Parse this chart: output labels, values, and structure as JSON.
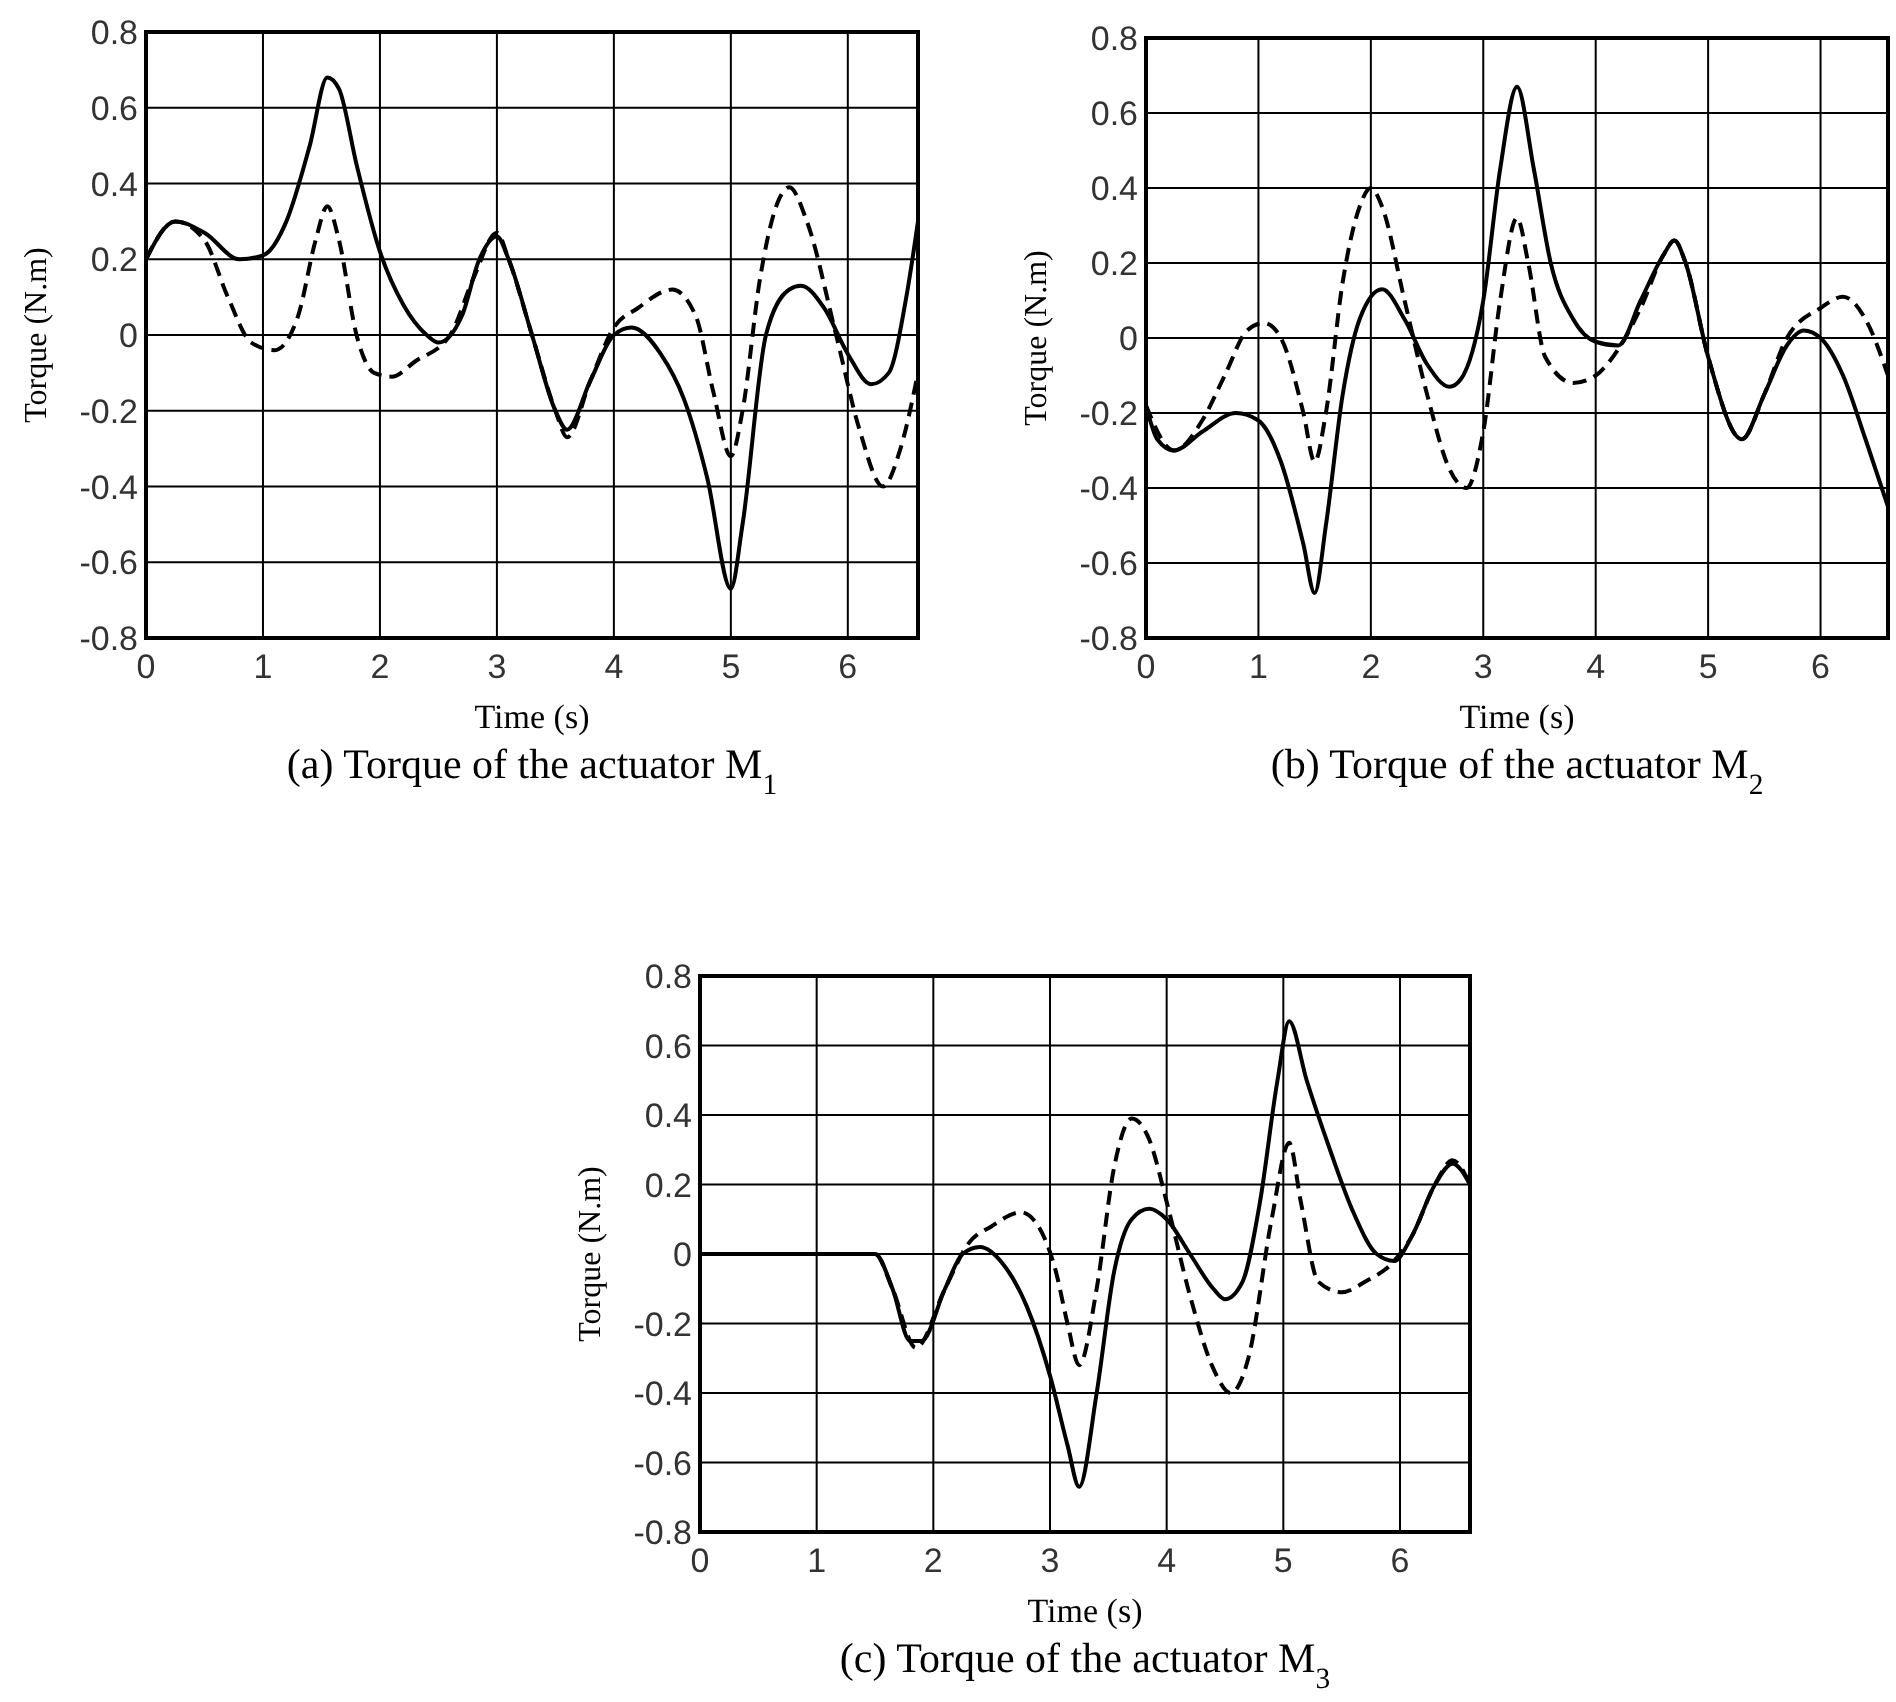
{
  "chart_data": [
    {
      "type": "line",
      "title": "(a) Torque of the actuator M$_{1}$",
      "xlabel": "Time (s)",
      "ylabel": "Torque (N.m)",
      "xlim": [
        0,
        6.6
      ],
      "ylim": [
        -0.8,
        0.8
      ],
      "xticks": [
        0,
        1,
        2,
        3,
        4,
        5,
        6
      ],
      "yticks": [
        -0.8,
        -0.6,
        -0.4,
        -0.2,
        0,
        0.2,
        0.4,
        0.6,
        0.8
      ],
      "grid": true,
      "series": [
        {
          "color": "#000000",
          "line_style": "solid",
          "x": [
            0,
            0.25,
            0.5,
            0.8,
            1.0,
            1.2,
            1.4,
            1.55,
            1.65,
            1.8,
            2.0,
            2.2,
            2.4,
            2.5,
            2.7,
            2.85,
            3.0,
            3.1,
            3.3,
            3.5,
            3.6,
            3.8,
            4.0,
            4.15,
            4.4,
            4.6,
            4.8,
            5.0,
            5.1,
            5.3,
            5.5,
            5.6,
            5.8,
            6.0,
            6.2,
            6.35,
            6.5,
            6.6
          ],
          "values": [
            0.2,
            0.3,
            0.27,
            0.2,
            0.21,
            0.3,
            0.5,
            0.68,
            0.65,
            0.45,
            0.22,
            0.08,
            0.0,
            -0.02,
            0.05,
            0.2,
            0.26,
            0.2,
            0.0,
            -0.2,
            -0.25,
            -0.12,
            0.0,
            0.02,
            -0.05,
            -0.17,
            -0.38,
            -0.67,
            -0.5,
            0.0,
            0.12,
            0.13,
            0.07,
            -0.05,
            -0.13,
            -0.1,
            0.1,
            0.3
          ]
        },
        {
          "color": "#000000",
          "line_style": "dashed",
          "x": [
            0,
            0.25,
            0.5,
            0.7,
            0.9,
            1.1,
            1.3,
            1.45,
            1.55,
            1.65,
            1.8,
            1.95,
            2.1,
            2.3,
            2.6,
            2.8,
            3.0,
            3.1,
            3.3,
            3.5,
            3.6,
            3.8,
            4.0,
            4.2,
            4.5,
            4.7,
            4.85,
            5.0,
            5.1,
            5.25,
            5.4,
            5.5,
            5.65,
            5.9,
            6.1,
            6.3,
            6.45,
            6.6
          ],
          "values": [
            0.2,
            0.3,
            0.25,
            0.1,
            -0.02,
            -0.04,
            0.05,
            0.25,
            0.34,
            0.25,
            0.0,
            -0.1,
            -0.11,
            -0.07,
            0.0,
            0.15,
            0.27,
            0.2,
            0.0,
            -0.2,
            -0.27,
            -0.12,
            0.02,
            0.07,
            0.12,
            0.05,
            -0.15,
            -0.32,
            -0.2,
            0.15,
            0.35,
            0.39,
            0.3,
            0.0,
            -0.25,
            -0.4,
            -0.3,
            -0.1
          ]
        }
      ]
    },
    {
      "type": "line",
      "title": "(b) Torque of the actuator M$_{2}$",
      "xlabel": "Time (s)",
      "ylabel": "Torque (N.m)",
      "xlim": [
        0,
        6.6
      ],
      "ylim": [
        -0.8,
        0.8
      ],
      "xticks": [
        0,
        1,
        2,
        3,
        4,
        5,
        6
      ],
      "yticks": [
        -0.8,
        -0.6,
        -0.4,
        -0.2,
        0,
        0.2,
        0.4,
        0.6,
        0.8
      ],
      "grid": true,
      "series": [
        {
          "color": "#000000",
          "line_style": "solid",
          "x": [
            0,
            0.1,
            0.25,
            0.5,
            0.8,
            1.0,
            1.2,
            1.4,
            1.5,
            1.6,
            1.75,
            1.9,
            2.1,
            2.3,
            2.5,
            2.7,
            2.8,
            3.0,
            3.15,
            3.3,
            3.45,
            3.6,
            3.8,
            4.0,
            4.2,
            4.4,
            4.6,
            4.7,
            4.8,
            5.0,
            5.3,
            5.5,
            5.7,
            5.85,
            6.0,
            6.2,
            6.4,
            6.6
          ],
          "values": [
            -0.18,
            -0.27,
            -0.3,
            -0.25,
            -0.2,
            -0.22,
            -0.33,
            -0.55,
            -0.68,
            -0.5,
            -0.15,
            0.05,
            0.13,
            0.05,
            -0.07,
            -0.13,
            -0.11,
            0.1,
            0.45,
            0.67,
            0.45,
            0.2,
            0.05,
            -0.01,
            -0.02,
            0.1,
            0.22,
            0.26,
            0.2,
            -0.05,
            -0.27,
            -0.15,
            -0.02,
            0.02,
            0.0,
            -0.1,
            -0.27,
            -0.45
          ]
        },
        {
          "color": "#000000",
          "line_style": "dashed",
          "x": [
            0,
            0.25,
            0.5,
            0.7,
            0.9,
            1.05,
            1.2,
            1.4,
            1.5,
            1.6,
            1.75,
            1.9,
            2.0,
            2.1,
            2.3,
            2.5,
            2.7,
            2.85,
            3.0,
            3.15,
            3.3,
            3.4,
            3.55,
            3.8,
            4.0,
            4.2,
            4.4,
            4.6,
            4.7,
            4.8,
            5.0,
            5.3,
            5.5,
            5.7,
            6.0,
            6.2,
            6.4,
            6.6
          ],
          "values": [
            -0.18,
            -0.3,
            -0.22,
            -0.1,
            0.02,
            0.04,
            0.0,
            -0.2,
            -0.33,
            -0.2,
            0.15,
            0.35,
            0.4,
            0.35,
            0.1,
            -0.15,
            -0.35,
            -0.4,
            -0.25,
            0.1,
            0.32,
            0.2,
            -0.05,
            -0.12,
            -0.1,
            -0.03,
            0.08,
            0.22,
            0.26,
            0.2,
            -0.05,
            -0.27,
            -0.15,
            0.0,
            0.08,
            0.11,
            0.05,
            -0.1
          ]
        }
      ]
    },
    {
      "type": "line",
      "title": "(c) Torque of the actuator M$_{3}$",
      "xlabel": "Time (s)",
      "ylabel": "Torque (N.m)",
      "xlim": [
        0,
        6.6
      ],
      "ylim": [
        -0.8,
        0.8
      ],
      "xticks": [
        0,
        1,
        2,
        3,
        4,
        5,
        6
      ],
      "yticks": [
        -0.8,
        -0.6,
        -0.4,
        -0.2,
        0,
        0.2,
        0.4,
        0.6,
        0.8
      ],
      "grid": true,
      "series": [
        {
          "color": "#000000",
          "line_style": "solid",
          "x": [
            0,
            1.5,
            1.65,
            1.8,
            1.9,
            2.1,
            2.25,
            2.4,
            2.6,
            2.8,
            3.0,
            3.15,
            3.25,
            3.4,
            3.55,
            3.7,
            3.85,
            4.0,
            4.2,
            4.4,
            4.5,
            4.65,
            4.8,
            4.95,
            5.05,
            5.2,
            5.4,
            5.6,
            5.8,
            5.95,
            6.1,
            6.3,
            6.45,
            6.6
          ],
          "values": [
            0,
            0,
            -0.1,
            -0.25,
            -0.25,
            -0.1,
            0.0,
            0.02,
            -0.03,
            -0.15,
            -0.35,
            -0.55,
            -0.67,
            -0.4,
            -0.05,
            0.1,
            0.13,
            0.1,
            0.0,
            -0.1,
            -0.13,
            -0.08,
            0.15,
            0.5,
            0.67,
            0.5,
            0.3,
            0.12,
            0.0,
            -0.02,
            0.05,
            0.2,
            0.26,
            0.2
          ]
        },
        {
          "color": "#000000",
          "line_style": "dashed",
          "x": [
            0,
            1.5,
            1.65,
            1.85,
            2.1,
            2.3,
            2.5,
            2.75,
            2.9,
            3.05,
            3.15,
            3.25,
            3.4,
            3.55,
            3.7,
            3.85,
            4.0,
            4.2,
            4.4,
            4.55,
            4.7,
            4.9,
            5.05,
            5.15,
            5.3,
            5.5,
            5.7,
            5.95,
            6.1,
            6.3,
            6.45,
            6.6
          ],
          "values": [
            0,
            0,
            -0.1,
            -0.27,
            -0.1,
            0.03,
            0.08,
            0.12,
            0.08,
            -0.05,
            -0.2,
            -0.32,
            -0.1,
            0.25,
            0.39,
            0.33,
            0.15,
            -0.12,
            -0.33,
            -0.4,
            -0.3,
            0.1,
            0.32,
            0.15,
            -0.08,
            -0.11,
            -0.08,
            -0.02,
            0.05,
            0.2,
            0.27,
            0.2
          ]
        }
      ]
    }
  ]
}
